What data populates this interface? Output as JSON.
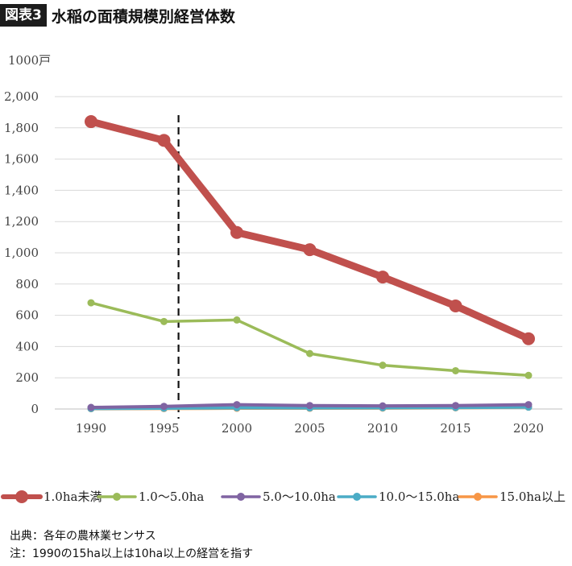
{
  "header": {
    "badge": "図表3",
    "title": "水稲の面積規模別経営体数"
  },
  "chart_data": {
    "type": "line",
    "unit_label": "1000戸",
    "x": [
      1990,
      1995,
      2000,
      2005,
      2010,
      2015,
      2020
    ],
    "ylim": [
      0,
      2000
    ],
    "yticks": [
      0,
      200,
      400,
      600,
      800,
      1000,
      1200,
      1400,
      1600,
      1800,
      2000
    ],
    "ytick_labels": [
      "0",
      "200",
      "400",
      "600",
      "800",
      "1,000",
      "1,200",
      "1,400",
      "1,600",
      "1,800",
      "2,000"
    ],
    "grid": true,
    "legend_position": "bottom",
    "vertical_marker": {
      "x": 1996,
      "style": "dashed"
    },
    "series": [
      {
        "name": "1.0ha未満",
        "color": "#c0504d",
        "values": [
          1840,
          1720,
          1130,
          1020,
          845,
          660,
          450
        ]
      },
      {
        "name": "1.0～5.0ha",
        "color": "#9bbb59",
        "values": [
          680,
          560,
          570,
          355,
          280,
          245,
          215
        ]
      },
      {
        "name": "5.0～10.0ha",
        "color": "#8064a2",
        "values": [
          10,
          17,
          28,
          22,
          20,
          22,
          28
        ]
      },
      {
        "name": "10.0～15.0ha",
        "color": "#4bacc6",
        "values": [
          3,
          5,
          8,
          7,
          8,
          9,
          12
        ]
      },
      {
        "name": "15.0ha以上",
        "color": "#f79646",
        "values": [
          2,
          3,
          5,
          5,
          6,
          8,
          12
        ]
      }
    ]
  },
  "footer": {
    "source": "出典：各年の農林業センサス",
    "note": "注：1990の15ha以上は10ha以上の経営を指す"
  }
}
